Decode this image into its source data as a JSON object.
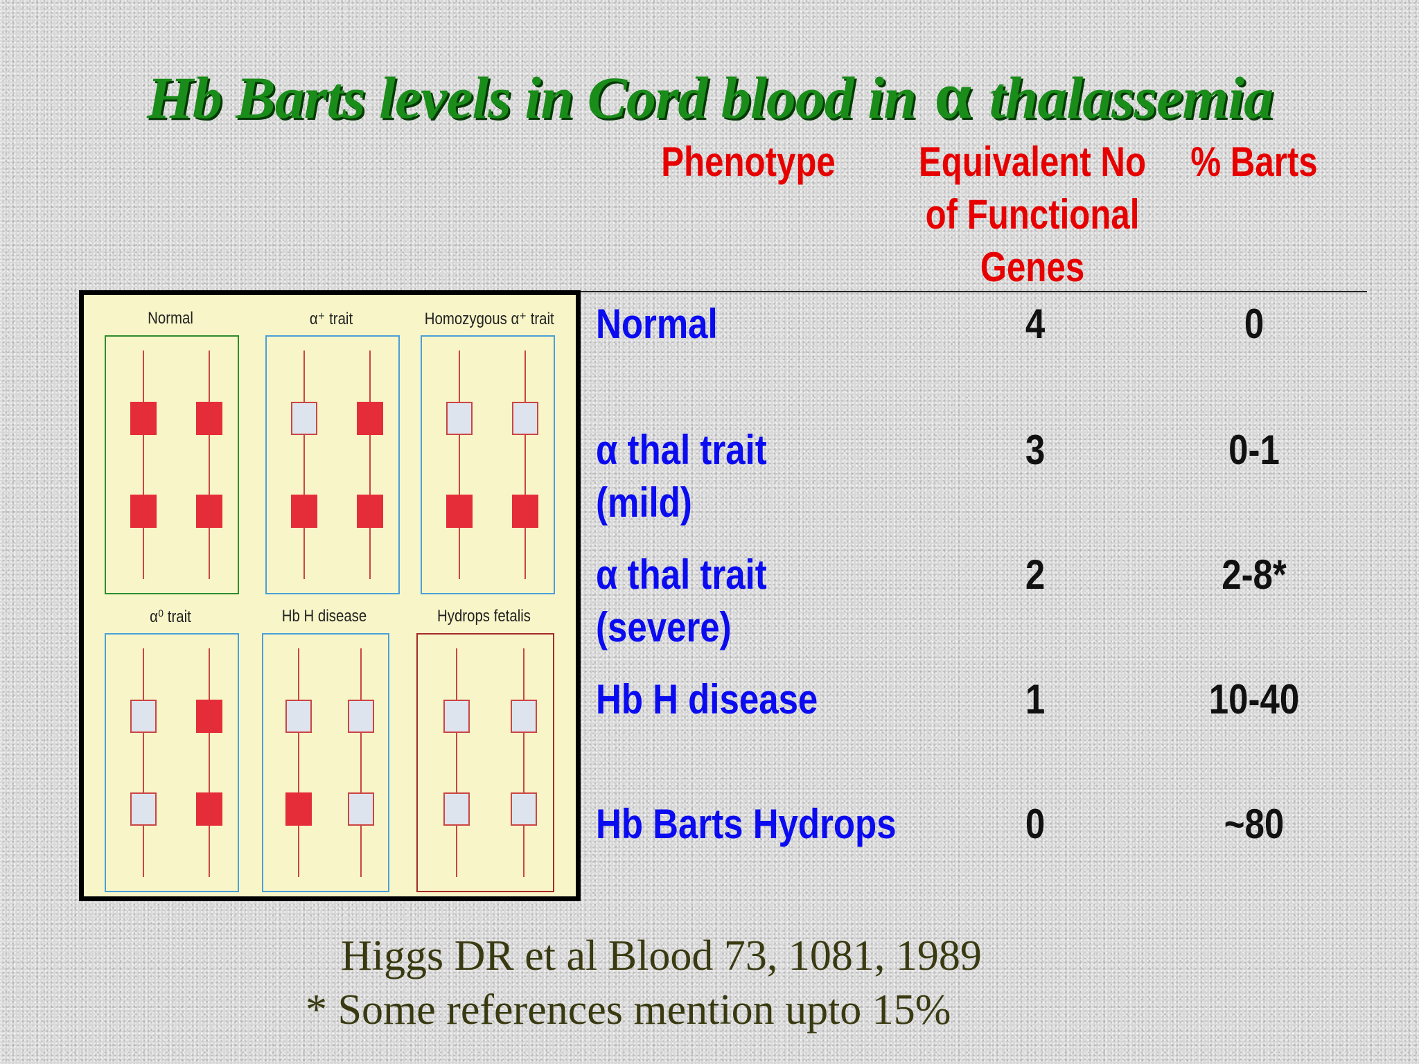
{
  "title": {
    "before": "Hb Barts levels in Cord blood in",
    "alpha": "α",
    "after": "thalassemia"
  },
  "table": {
    "headers": {
      "phenotype": "Phenotype",
      "equivalent_line1": "Equivalent No",
      "equivalent_line2": "of Functional",
      "equivalent_line3": "Genes",
      "percent": "% Barts"
    },
    "rows": [
      {
        "line1": "Normal",
        "line2": "",
        "genes": "4",
        "barts": "0"
      },
      {
        "line1": "α thal trait",
        "line2": "(mild)",
        "genes": "3",
        "barts": "0-1"
      },
      {
        "line1": "α thal trait",
        "line2": "(severe)",
        "genes": "2",
        "barts": "2-8*"
      },
      {
        "line1": "Hb H disease",
        "line2": "",
        "genes": "1",
        "barts": "10-40"
      },
      {
        "line1": "Hb Barts Hydrops",
        "line2": "",
        "genes": "0",
        "barts": "~80"
      }
    ]
  },
  "figure": {
    "panels": [
      {
        "label": "Normal",
        "border": "#2e8b2e",
        "genes": [
          [
            true,
            true
          ],
          [
            true,
            true
          ]
        ]
      },
      {
        "label": "α⁺ trait",
        "border": "#4a9fd8",
        "genes": [
          [
            false,
            true
          ],
          [
            true,
            true
          ]
        ]
      },
      {
        "label": "Homozygous α⁺ trait",
        "border": "#4a9fd8",
        "genes": [
          [
            false,
            false
          ],
          [
            true,
            true
          ]
        ]
      },
      {
        "label": "α⁰ trait",
        "border": "#4a9fd8",
        "genes": [
          [
            false,
            true
          ],
          [
            false,
            true
          ]
        ]
      },
      {
        "label": "Hb H disease",
        "border": "#4a9fd8",
        "genes": [
          [
            false,
            false
          ],
          [
            true,
            false
          ]
        ]
      },
      {
        "label": "Hydrops fetalis",
        "border": "#a52a2a",
        "genes": [
          [
            false,
            false
          ],
          [
            false,
            false
          ]
        ]
      }
    ]
  },
  "citation": {
    "line1": "Higgs DR et al Blood 73, 1081, 1989",
    "line2": "* Some references mention upto 15%"
  }
}
